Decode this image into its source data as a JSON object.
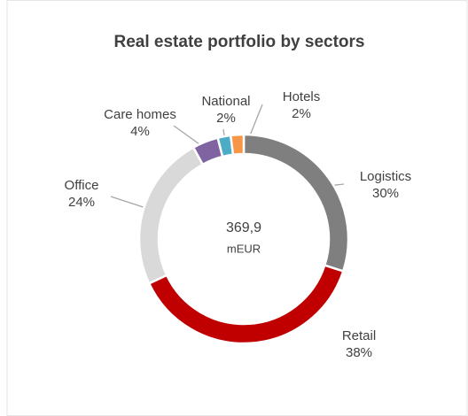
{
  "chart_data": {
    "type": "donut",
    "title": "Real estate portfolio by sectors",
    "center_text": [
      "369,9",
      "mEUR"
    ],
    "categories": [
      "Logistics",
      "Retail",
      "Office",
      "Care homes",
      "National",
      "Hotels"
    ],
    "values": [
      30,
      38,
      24,
      4,
      2,
      2
    ],
    "value_labels": [
      "30%",
      "38%",
      "24%",
      "4%",
      "2%",
      "2%"
    ],
    "colors": [
      "#7f7f7f",
      "#c00000",
      "#d9d9d9",
      "#8064a2",
      "#4bacc6",
      "#f79646"
    ]
  }
}
